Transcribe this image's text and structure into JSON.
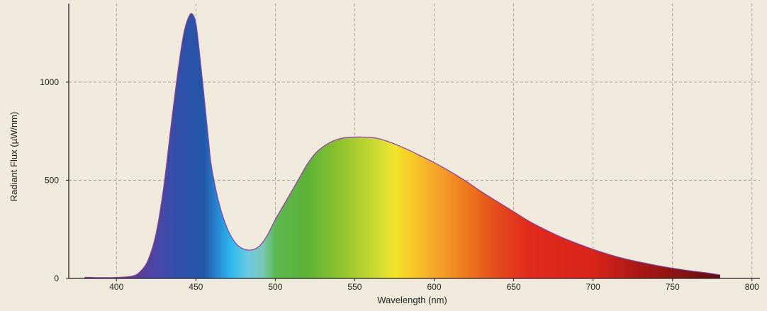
{
  "chart_data": {
    "type": "area",
    "title": "",
    "xlabel": "Wavelength (nm)",
    "ylabel": "Radiant Flux (µW/nm)",
    "xlim": [
      370,
      805
    ],
    "ylim": [
      0,
      1400
    ],
    "xticks": [
      400,
      450,
      500,
      550,
      600,
      650,
      700,
      750,
      800
    ],
    "yticks": [
      0,
      500,
      1000
    ],
    "grid": true,
    "legend": "none",
    "series": [
      {
        "values_x": [
          380,
          390,
          400,
          410,
          415,
          420,
          425,
          430,
          435,
          440,
          443,
          446,
          448,
          450,
          452,
          455,
          458,
          460,
          465,
          470,
          475,
          480,
          485,
          490,
          495,
          500,
          505,
          510,
          515,
          520,
          525,
          530,
          535,
          540,
          545,
          550,
          555,
          560,
          565,
          570,
          575,
          580,
          585,
          590,
          595,
          600,
          610,
          620,
          630,
          640,
          650,
          660,
          670,
          680,
          690,
          700,
          710,
          720,
          730,
          740,
          750,
          760,
          770,
          780
        ],
        "values_y": [
          6,
          4,
          5,
          12,
          35,
          95,
          230,
          480,
          820,
          1130,
          1270,
          1340,
          1345,
          1300,
          1170,
          940,
          700,
          560,
          370,
          250,
          180,
          150,
          145,
          165,
          220,
          300,
          370,
          440,
          510,
          580,
          635,
          670,
          695,
          710,
          718,
          720,
          720,
          718,
          712,
          700,
          685,
          668,
          650,
          630,
          610,
          590,
          545,
          495,
          440,
          390,
          340,
          290,
          248,
          210,
          178,
          148,
          122,
          100,
          82,
          66,
          52,
          40,
          30,
          18
        ]
      }
    ]
  }
}
